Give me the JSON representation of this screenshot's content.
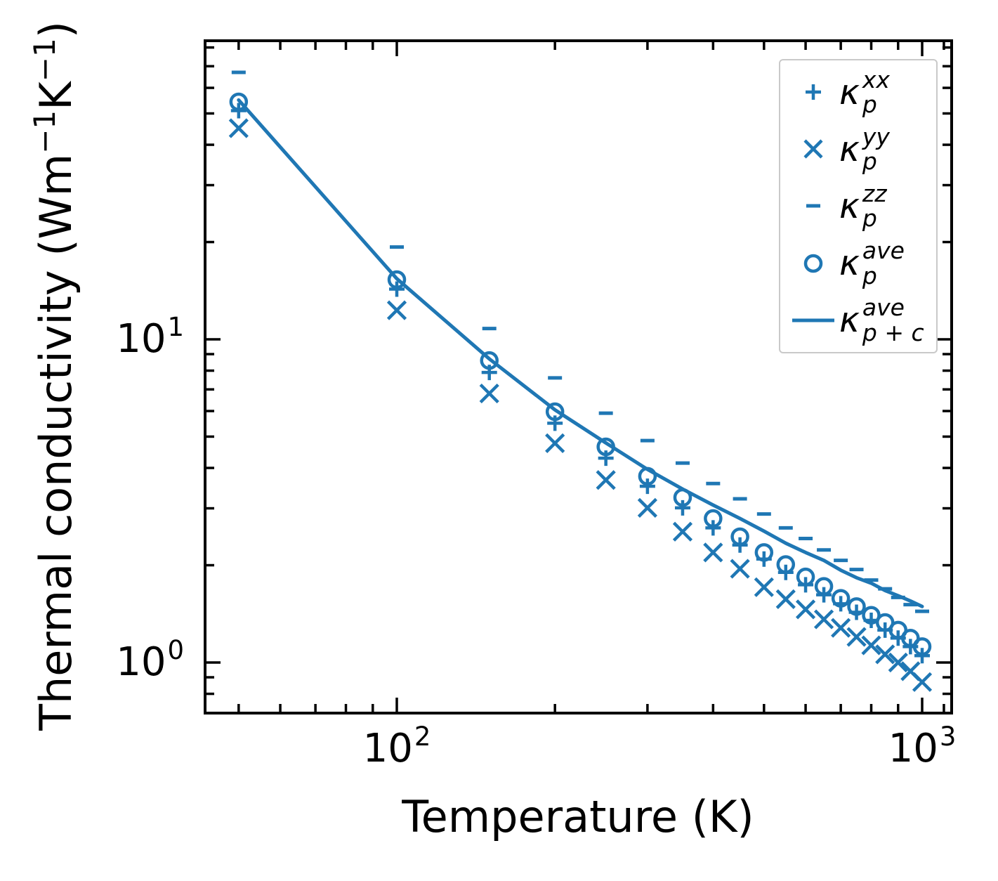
{
  "figure": {
    "background": "#ffffff"
  },
  "chart_data": {
    "type": "scatter",
    "title": "",
    "xlabel": "Temperature (K)",
    "ylabel": "Thermal conductivity (Wm⁻¹K⁻¹)",
    "ylabel_parts": [
      {
        "t": "Thermal conductivity (Wm"
      },
      {
        "t": "−1",
        "sup": true
      },
      {
        "t": "K"
      },
      {
        "t": "−1",
        "sup": true
      },
      {
        "t": ")"
      }
    ],
    "x_scale": "log",
    "y_scale": "log",
    "xlim": [
      43,
      1140
    ],
    "ylim": [
      0.7,
      84
    ],
    "grid": false,
    "legend_position": "upper right",
    "color": "#1f77b4",
    "x": [
      50,
      100,
      150,
      200,
      250,
      300,
      350,
      400,
      450,
      500,
      550,
      600,
      650,
      700,
      750,
      800,
      850,
      900,
      950,
      1000
    ],
    "series": [
      {
        "id": "kappa-p-xx",
        "label": "κ_p^xx",
        "marker": "plus",
        "values": [
          51,
          14.3,
          7.9,
          5.5,
          4.29,
          3.51,
          3.01,
          2.61,
          2.31,
          2.09,
          1.9,
          1.74,
          1.62,
          1.52,
          1.43,
          1.35,
          1.26,
          1.19,
          1.12,
          1.05
        ]
      },
      {
        "id": "kappa-p-yy",
        "label": "κ_p^yy",
        "marker": "x",
        "values": [
          45,
          12.3,
          6.8,
          4.77,
          3.67,
          3.01,
          2.54,
          2.19,
          1.95,
          1.71,
          1.57,
          1.46,
          1.36,
          1.28,
          1.2,
          1.13,
          1.06,
          1.0,
          0.94,
          0.87
        ]
      },
      {
        "id": "kappa-p-zz",
        "label": "κ_p^zz",
        "marker": "dash",
        "values": [
          67,
          19.3,
          10.8,
          7.6,
          5.91,
          4.86,
          4.14,
          3.58,
          3.21,
          2.88,
          2.61,
          2.42,
          2.23,
          2.07,
          1.94,
          1.8,
          1.69,
          1.59,
          1.51,
          1.44
        ]
      },
      {
        "id": "kappa-p-ave",
        "label": "κ_p^ave",
        "marker": "circle",
        "values": [
          54.3,
          15.3,
          8.6,
          5.97,
          4.65,
          3.77,
          3.24,
          2.79,
          2.45,
          2.19,
          2.01,
          1.84,
          1.72,
          1.58,
          1.49,
          1.4,
          1.33,
          1.26,
          1.19,
          1.12
        ]
      },
      {
        "id": "kappa-p-plus-c-ave",
        "label": "κ_{p+c}^ave",
        "marker": "line",
        "values": [
          55,
          15.4,
          8.7,
          6.05,
          4.78,
          3.96,
          3.44,
          3.07,
          2.79,
          2.55,
          2.34,
          2.19,
          2.07,
          1.93,
          1.83,
          1.76,
          1.67,
          1.61,
          1.55,
          1.49
        ]
      }
    ],
    "axes": {
      "x": {
        "major": [
          100,
          1000
        ],
        "minor": [
          50,
          60,
          70,
          80,
          90,
          200,
          300,
          400,
          500,
          600,
          700,
          800,
          900,
          1100
        ],
        "ticklabels": [
          {
            "value": 100,
            "mantissa": "10",
            "exponent": "2"
          },
          {
            "value": 1000,
            "mantissa": "10",
            "exponent": "3"
          }
        ]
      },
      "y": {
        "major": [
          1,
          10
        ],
        "minor": [
          0.8,
          0.9,
          2,
          3,
          4,
          5,
          6,
          7,
          8,
          9,
          20,
          30,
          40,
          50,
          60,
          70,
          80
        ],
        "ticklabels": [
          {
            "value": 1,
            "mantissa": "10",
            "exponent": "0"
          },
          {
            "value": 10,
            "mantissa": "10",
            "exponent": "1"
          }
        ]
      }
    }
  },
  "legend": {
    "symbol": "κ",
    "border_color": "#c9c9c9",
    "entries": [
      {
        "marker": "plus",
        "sup": "xx",
        "sub": "p"
      },
      {
        "marker": "x",
        "sup": "yy",
        "sub": "p"
      },
      {
        "marker": "dash",
        "sup": "zz",
        "sub": "p"
      },
      {
        "marker": "circle",
        "sup": "ave",
        "sub": "p"
      },
      {
        "marker": "line",
        "sup": "ave",
        "sub": "p + c"
      }
    ]
  }
}
